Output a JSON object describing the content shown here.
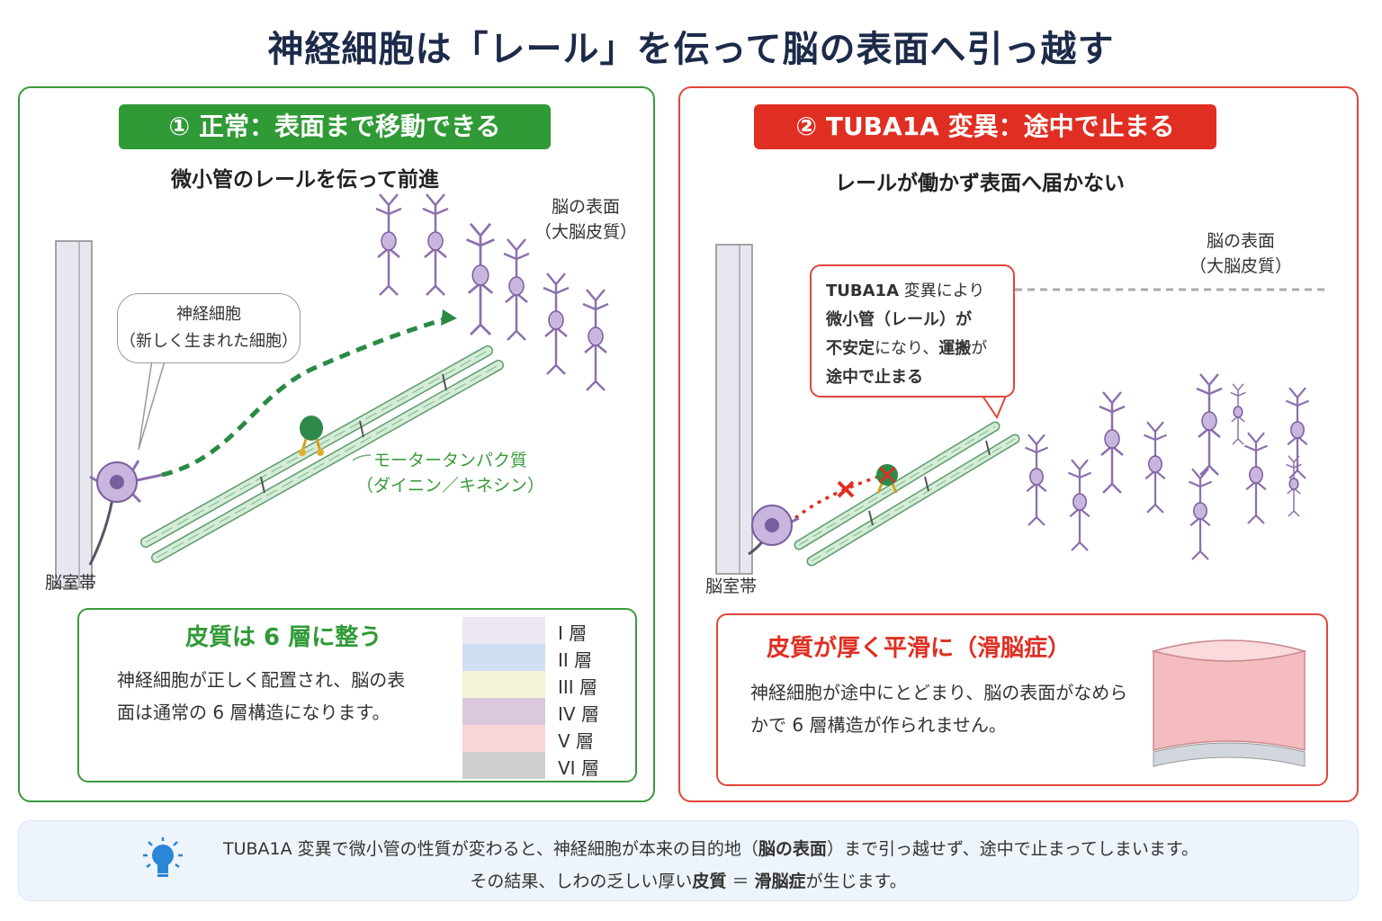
{
  "title": "神経細胞は「レール」を伝って脳の表面へ引っ越す",
  "normal": {
    "badge": "① 正常：表面まで移動できる",
    "subtitle": "微小管のレールを伝って前進",
    "surface_label_1": "脳の表面",
    "surface_label_2": "（大脳皮質）",
    "neuron_bubble_1": "神経細胞",
    "neuron_bubble_2": "（新しく生まれた細胞）",
    "motor_label_1": "モータータンパク質",
    "motor_label_2": "（ダイニン／キネシン）",
    "zone_label": "脳室帯",
    "info_title": "皮質は 6 層に整う",
    "info_text": "神経細胞が正しく配置され、脳の表面は通常の 6 層構造になります。",
    "layers": [
      {
        "label": "I 層",
        "color": "#ede6f3"
      },
      {
        "label": "II 層",
        "color": "#cfe0f5"
      },
      {
        "label": "III 層",
        "color": "#f4f3d6"
      },
      {
        "label": "IV 層",
        "color": "#dcc8dc"
      },
      {
        "label": "V 層",
        "color": "#f6d6d6"
      },
      {
        "label": "VI 層",
        "color": "#cfcfcf"
      }
    ]
  },
  "mutant": {
    "badge": "② TUBA1A 変異：途中で止まる",
    "subtitle": "レールが働かず表面へ届かない",
    "surface_label_1": "脳の表面",
    "surface_label_2": "（大脳皮質）",
    "bubble_line1_bold": "TUBA1A",
    "bubble_line1_rest": " 変異により",
    "bubble_line2": "微小管（レール）が",
    "bubble_line3_bold": "不安定",
    "bubble_line3_mid": "になり、",
    "bubble_line3_bold2": "運搬",
    "bubble_line3_end": "が",
    "bubble_line4": "途中で止まる",
    "zone_label": "脳室帯",
    "info_title": "皮質が厚く平滑に（滑脳症）",
    "info_text": "神経細胞が途中にとどまり、脳の表面がなめらかで 6 層構造が作られません。"
  },
  "footer": {
    "line1_a": "TUBA1A 変異で微小管の性質が変わると、神経細胞が本来の目的地（",
    "line1_b": "脳の表面",
    "line1_c": "）まで引っ越せず、途中で止まってしまいます。",
    "line2_a": "その結果、しわの乏しい厚い",
    "line2_b": "皮質",
    "line2_c": " ＝ ",
    "line2_d": "滑脳症",
    "line2_e": "が生じます。"
  },
  "colors": {
    "normal_accent": "#2f9a36",
    "mutant_accent": "#e02e22",
    "neuron": "#a68cc4",
    "microtubule": "#d4ecd8"
  }
}
